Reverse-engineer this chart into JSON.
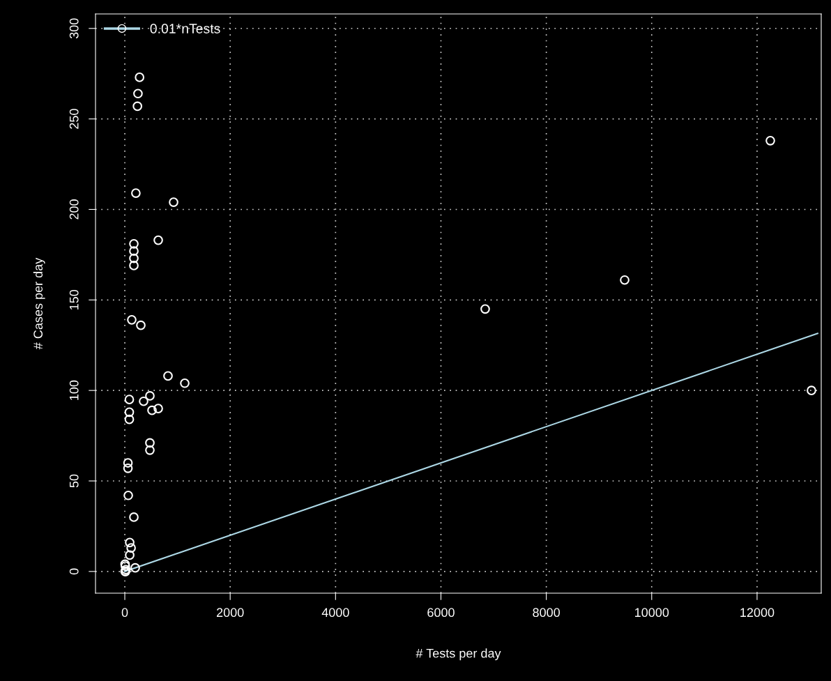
{
  "chart_data": {
    "type": "scatter",
    "xlabel": "# Tests per day",
    "ylabel": "# Cases per day",
    "series": [
      {
        "color": "#ffffff",
        "marker": "circle",
        "x": [
          280,
          250,
          240,
          210,
          926,
          635,
          172,
          172,
          172,
          172,
          132,
          304,
          820,
          1138,
          476,
          357,
          516,
          635,
          476,
          476,
          86,
          86,
          86,
          60,
          60,
          66,
          172,
          93,
          120,
          93,
          5,
          10,
          20,
          5,
          15,
          198,
          6840,
          9487,
          12252,
          13032
        ],
        "values": [
          273,
          264,
          257,
          209,
          204,
          183,
          181,
          177,
          173,
          169,
          139,
          136,
          108,
          104,
          97,
          94,
          89,
          90,
          71,
          67,
          95,
          88,
          84,
          60,
          57,
          42,
          30,
          16,
          13,
          9,
          4,
          3,
          1,
          0,
          0,
          2,
          145,
          161,
          238,
          100
        ]
      },
      {
        "type": "line",
        "marker": "none",
        "name": "0.01*nTests",
        "color": "#add8e6",
        "x": [
          0,
          13150
        ],
        "values": [
          0,
          131.5
        ]
      }
    ],
    "xlim": [
      -556,
      13218
    ],
    "ylim": [
      -12,
      308
    ],
    "xticks": [
      0,
      2000,
      4000,
      6000,
      8000,
      10000,
      12000
    ],
    "yticks": [
      0,
      50,
      100,
      150,
      200,
      250,
      300
    ],
    "grid": true,
    "legend": "top left"
  }
}
